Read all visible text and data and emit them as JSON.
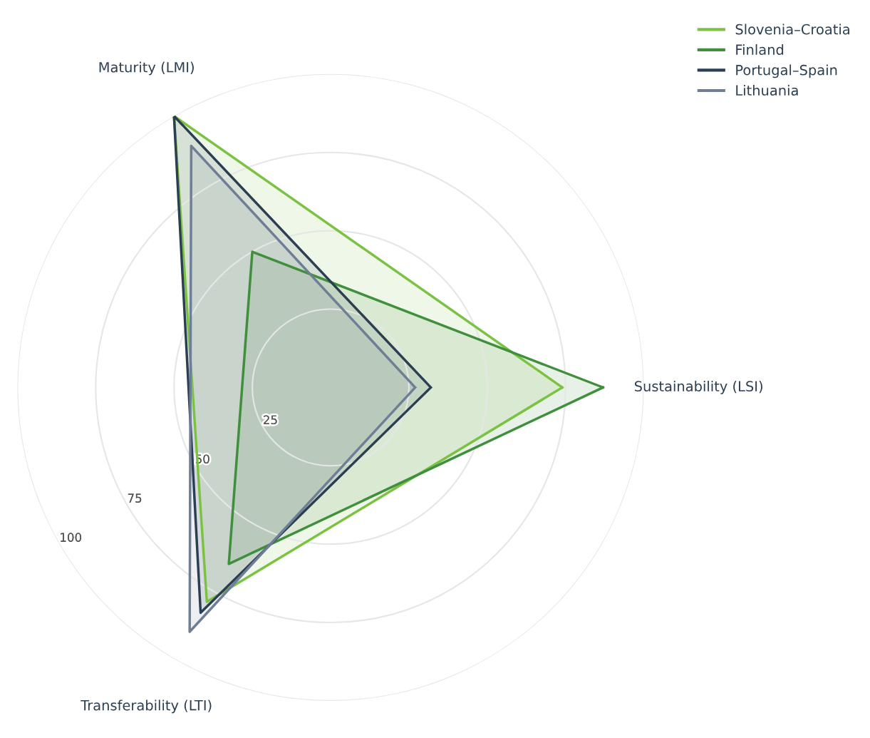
{
  "chart_data": {
    "type": "radar",
    "categories": [
      "Sustainability (LSI)",
      "Transferability (LTI)",
      "Maturity (LMI)"
    ],
    "ylim": [
      0,
      100
    ],
    "yticks": [
      25,
      50,
      75,
      100
    ],
    "grid": true,
    "legend": "top right",
    "series": [
      {
        "name": "Slovenia–Croatia",
        "color": "#7cc242",
        "values": [
          74,
          79,
          100
        ]
      },
      {
        "name": "Finland",
        "color": "#3f8f3c",
        "values": [
          87,
          65,
          50
        ]
      },
      {
        "name": "Portugal–Spain",
        "color": "#2b3e52",
        "values": [
          32,
          83,
          100
        ]
      },
      {
        "name": "Lithuania",
        "color": "#6e7e96",
        "values": [
          27,
          90,
          89
        ]
      }
    ]
  }
}
